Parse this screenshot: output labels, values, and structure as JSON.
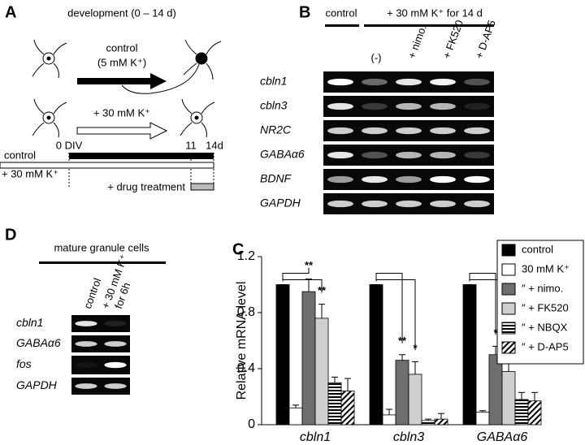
{
  "panels": {
    "a": {
      "letter": "A",
      "heading": "development (0 – 14 d)",
      "control": "control",
      "control_k": "(5 mM K⁺)",
      "high_k": "+ 30 mM K⁺",
      "start": "0 DIV",
      "day11": "11",
      "day14": "14d",
      "bar_control": "control",
      "bar_high_k": "+ 30 mM K⁺",
      "drug": "+ drug treatment"
    },
    "b": {
      "letter": "B",
      "control": "control",
      "high_k": "+ 30 mM K⁺ for 14 d",
      "lanes": [
        "(-)",
        "+ nimo.",
        "+ FK520",
        "+ D-AP5"
      ],
      "rows": [
        "cbln1",
        "cbln3",
        "NR2C",
        "GABAα6",
        "BDNF",
        "GAPDH"
      ]
    },
    "d": {
      "letter": "D",
      "heading": "mature granule cells",
      "lanes": [
        "control",
        "+ 30 mM K⁺",
        "for 6h"
      ],
      "rows": [
        "cbln1",
        "GABAα6",
        "fos",
        "GAPDH"
      ]
    },
    "c": {
      "letter": "C"
    }
  },
  "chart_data": {
    "type": "bar",
    "ylabel": "Relative mRNA level",
    "categories": [
      "cbln1",
      "cbln3",
      "GABAα6"
    ],
    "series": [
      {
        "name": "control",
        "color": "#000000",
        "values": [
          1,
          1,
          1
        ],
        "errors": [
          0,
          0,
          0
        ]
      },
      {
        "name": "30 mM K⁺",
        "color": "#ffffff",
        "values": [
          0.12,
          0.07,
          0.09
        ],
        "errors": [
          0.02,
          0.04,
          0.01
        ]
      },
      {
        "name": "″ + nimo.",
        "color": "#6e6e6e",
        "values": [
          0.95,
          0.46,
          0.5
        ],
        "errors": [
          0.09,
          0.04,
          0.06
        ]
      },
      {
        "name": "″ + FK520",
        "color": "#cfcfcf",
        "values": [
          0.76,
          0.36,
          0.38
        ],
        "errors": [
          0.1,
          0.09,
          0.06
        ]
      },
      {
        "name": "″ + NBQX",
        "color": "#ffffff",
        "pattern": "horizontal",
        "values": [
          0.3,
          0.03,
          0.18
        ],
        "errors": [
          0.04,
          0.01,
          0.05
        ]
      },
      {
        "name": "″ + D-AP5",
        "color": "#ffffff",
        "pattern": "diagonal",
        "values": [
          0.24,
          0.04,
          0.17
        ],
        "errors": [
          0.09,
          0.04,
          0.06
        ]
      }
    ],
    "annotations": [
      [
        "**",
        "**"
      ],
      [
        "**",
        "*"
      ],
      [
        "*",
        "*"
      ]
    ],
    "ylim": [
      0,
      1.2
    ],
    "yticks": [
      0,
      0.4,
      0.8,
      1.2
    ],
    "legend": "right"
  }
}
